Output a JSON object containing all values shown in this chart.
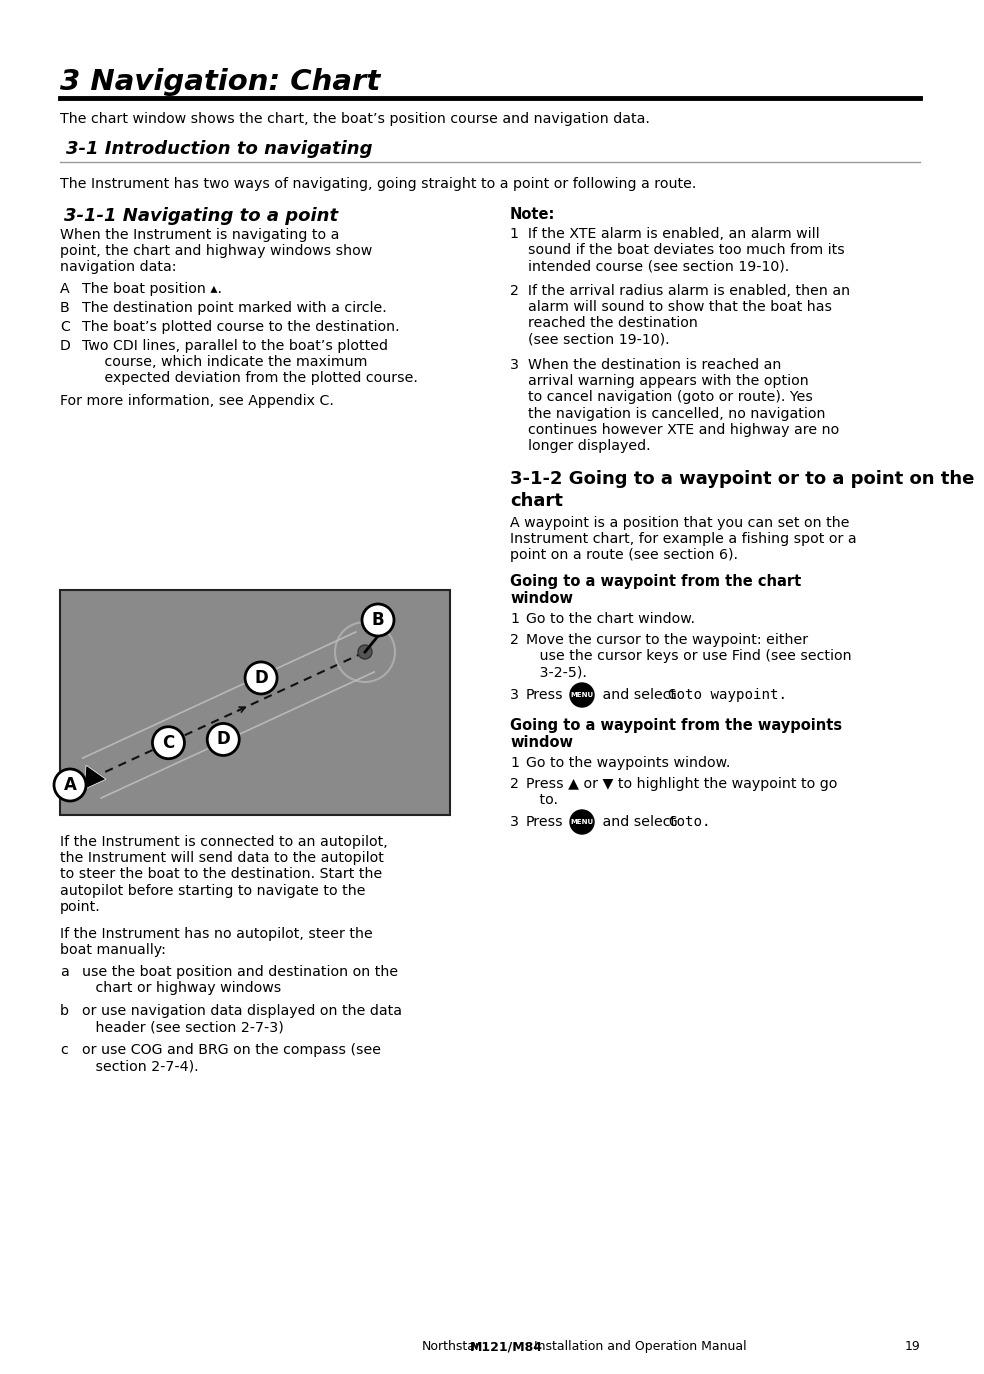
{
  "page_bg": "#ffffff",
  "title": "3 Navigation: Chart",
  "subtitle": "3-1 Introduction to navigating",
  "intro_text": "The chart window shows the chart, the boat’s position course and navigation data.",
  "intro2_text": "The Instrument has two ways of navigating, going straight to a point or following a route.",
  "left_col_heading": "3-1-1 Navigating to a point",
  "right_col_heading": "Note:",
  "section312_heading_line1": "3-1-2 Going to a waypoint or to a point on the",
  "section312_heading_line2": "chart",
  "section312_body": "A waypoint is a position that you can set on the\nInstrument chart, for example a fishing spot or a\npoint on a route (see section 6).",
  "goto_chart_heading": "Going to a waypoint from the chart\nwindow",
  "goto_waypts_heading": "Going to a waypoint from the waypoints\nwindow",
  "footer_northstar": "Northstar",
  "footer_bold": "M121/M84",
  "footer_rest": "  Installation and Operation Manual",
  "footer_page": "19"
}
